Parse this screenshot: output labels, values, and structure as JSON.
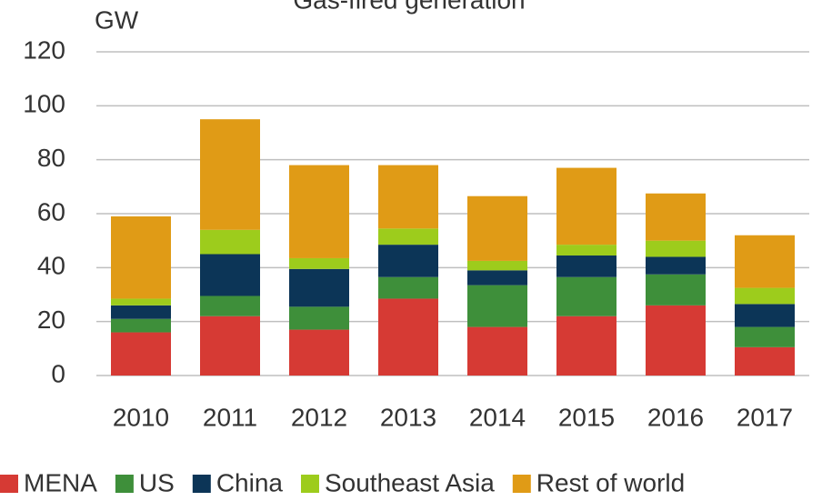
{
  "chart_data": {
    "type": "stacked_bar",
    "title": "Gas-fired generation",
    "y_label": "GW",
    "categories": [
      "2010",
      "2011",
      "2012",
      "2013",
      "2014",
      "2015",
      "2016",
      "2017"
    ],
    "series": [
      {
        "name": "MENA",
        "color": "#d63a34",
        "values": [
          16,
          22,
          17,
          28.5,
          18,
          22,
          26,
          10.5
        ]
      },
      {
        "name": "US",
        "color": "#3e8f3a",
        "values": [
          5,
          7.5,
          8.5,
          8,
          15.5,
          14.5,
          11.5,
          7.5
        ]
      },
      {
        "name": "China",
        "color": "#0c3557",
        "values": [
          5,
          15.5,
          14,
          12,
          5.5,
          8,
          6.5,
          8.5
        ]
      },
      {
        "name": "Southeast Asia",
        "color": "#9dcc1c",
        "values": [
          2.5,
          9,
          4,
          6,
          3.5,
          4,
          6,
          6
        ]
      },
      {
        "name": "Rest of world",
        "color": "#e09b16",
        "values": [
          30.5,
          41,
          34.5,
          23.5,
          24,
          28.5,
          17.5,
          19.5
        ]
      }
    ],
    "ylim": [
      0,
      120
    ],
    "yticks": [
      0,
      20,
      40,
      60,
      80,
      100,
      120
    ],
    "grid": true,
    "legend": "bottom"
  }
}
